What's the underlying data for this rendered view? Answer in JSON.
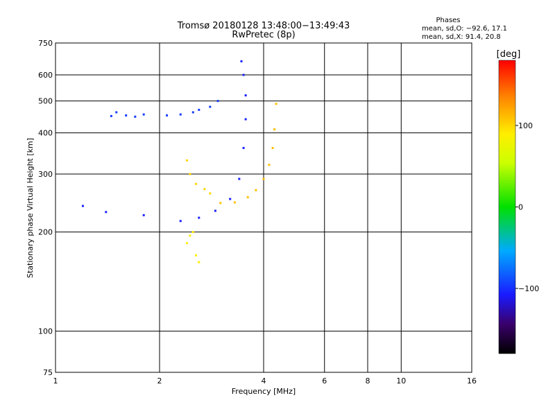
{
  "chart_data": {
    "type": "scatter",
    "title": "Tromsø 20180128 13:48:00−13:49:43",
    "subtitle": "RwPretec (8p)",
    "xlabel": "Frequency [MHz]",
    "ylabel": "Stationary phase Virtual Height [km]",
    "x_scale": "log",
    "y_scale": "log",
    "xlim": [
      1,
      16
    ],
    "ylim": [
      75,
      750
    ],
    "x_ticks": [
      "1",
      "2",
      "4",
      "6",
      "8",
      "10",
      "16"
    ],
    "y_ticks": [
      "75",
      "100",
      "200",
      "300",
      "400",
      "500",
      "600",
      "750"
    ],
    "grid": true,
    "legend": {
      "title": "Phases",
      "line1": "mean, sd,O: −92.6, 17.1",
      "line2": "mean, sd,X:  91.4, 20.8"
    },
    "colorbar": {
      "label": "[deg]",
      "range": [
        -180,
        180
      ],
      "ticks": [
        "100",
        "0",
        "−100"
      ]
    },
    "series": [
      {
        "values_x_mhz": [
          1.2,
          1.4,
          1.8,
          2.3,
          2.6,
          2.9,
          3.2,
          3.4,
          3.5,
          3.55,
          3.55,
          3.5,
          3.45
        ],
        "values_y_km": [
          240,
          230,
          225,
          216,
          221,
          232,
          252,
          290,
          360,
          440,
          520,
          600,
          660
        ],
        "phase_deg": -105
      },
      {
        "values_x_mhz": [
          3.0,
          3.3,
          3.6,
          3.8,
          4.0,
          4.15,
          4.25,
          4.3,
          4.35
        ],
        "values_y_km": [
          245,
          246,
          255,
          268,
          290,
          320,
          360,
          410,
          490
        ],
        "phase_deg": 110
      },
      {
        "values_x_mhz": [
          1.45,
          1.5,
          1.6,
          1.7,
          1.8,
          2.1,
          2.3,
          2.5,
          2.6,
          2.8,
          2.95
        ],
        "values_y_km": [
          450,
          462,
          452,
          448,
          455,
          452,
          455,
          462,
          470,
          480,
          500
        ],
        "phase_deg": -95
      },
      {
        "values_x_mhz": [
          2.4,
          2.45,
          2.5,
          2.55,
          2.6
        ],
        "values_y_km": [
          185,
          195,
          200,
          170,
          162
        ],
        "phase_deg": 90
      },
      {
        "values_x_mhz": [
          2.4,
          2.45,
          2.55,
          2.7,
          2.8
        ],
        "values_y_km": [
          330,
          300,
          280,
          270,
          262
        ],
        "phase_deg": 100
      }
    ]
  }
}
